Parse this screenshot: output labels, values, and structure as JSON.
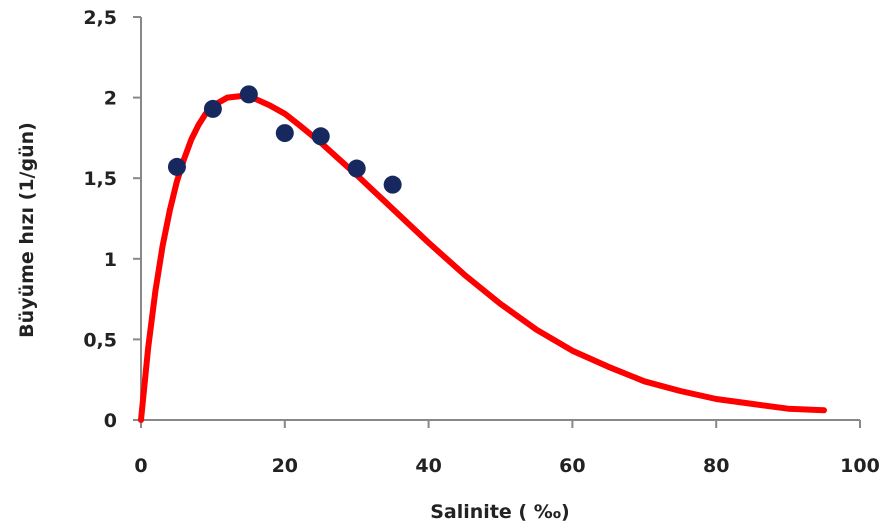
{
  "chart_data": {
    "type": "scatter",
    "title": "",
    "xlabel": "Salinite ( ‰)",
    "ylabel": "Büyüme hızı (1/gün)",
    "xlim": [
      0,
      100
    ],
    "ylim": [
      0,
      2.5
    ],
    "xticks": [
      0,
      20,
      40,
      60,
      80,
      100
    ],
    "xtick_labels": [
      "0",
      "20",
      "40",
      "60",
      "80",
      "100"
    ],
    "yticks": [
      0,
      0.5,
      1,
      1.5,
      2,
      2.5
    ],
    "ytick_labels": [
      "0",
      "0,5",
      "1",
      "1,5",
      "2",
      "2,5"
    ],
    "grid": false,
    "legend": "none",
    "series": [
      {
        "kind": "scatter",
        "color": "#17285e",
        "points": [
          {
            "x": 5,
            "y": 1.57
          },
          {
            "x": 10,
            "y": 1.93
          },
          {
            "x": 15,
            "y": 2.02
          },
          {
            "x": 20,
            "y": 1.78
          },
          {
            "x": 25,
            "y": 1.76
          },
          {
            "x": 30,
            "y": 1.56
          },
          {
            "x": 35,
            "y": 1.46
          }
        ]
      },
      {
        "kind": "line",
        "color": "#ff0000",
        "points": [
          {
            "x": 0,
            "y": 0
          },
          {
            "x": 1,
            "y": 0.45
          },
          {
            "x": 2,
            "y": 0.8
          },
          {
            "x": 3,
            "y": 1.08
          },
          {
            "x": 4,
            "y": 1.3
          },
          {
            "x": 5,
            "y": 1.48
          },
          {
            "x": 6,
            "y": 1.62
          },
          {
            "x": 7,
            "y": 1.74
          },
          {
            "x": 8,
            "y": 1.83
          },
          {
            "x": 9,
            "y": 1.9
          },
          {
            "x": 10,
            "y": 1.95
          },
          {
            "x": 12,
            "y": 2.0
          },
          {
            "x": 14,
            "y": 2.01
          },
          {
            "x": 16,
            "y": 1.99
          },
          {
            "x": 18,
            "y": 1.95
          },
          {
            "x": 20,
            "y": 1.9
          },
          {
            "x": 22,
            "y": 1.83
          },
          {
            "x": 25,
            "y": 1.72
          },
          {
            "x": 28,
            "y": 1.6
          },
          {
            "x": 30,
            "y": 1.52
          },
          {
            "x": 35,
            "y": 1.31
          },
          {
            "x": 40,
            "y": 1.1
          },
          {
            "x": 45,
            "y": 0.9
          },
          {
            "x": 50,
            "y": 0.72
          },
          {
            "x": 55,
            "y": 0.56
          },
          {
            "x": 60,
            "y": 0.43
          },
          {
            "x": 65,
            "y": 0.33
          },
          {
            "x": 70,
            "y": 0.24
          },
          {
            "x": 75,
            "y": 0.18
          },
          {
            "x": 80,
            "y": 0.13
          },
          {
            "x": 85,
            "y": 0.1
          },
          {
            "x": 90,
            "y": 0.07
          },
          {
            "x": 95,
            "y": 0.06
          }
        ]
      }
    ]
  }
}
